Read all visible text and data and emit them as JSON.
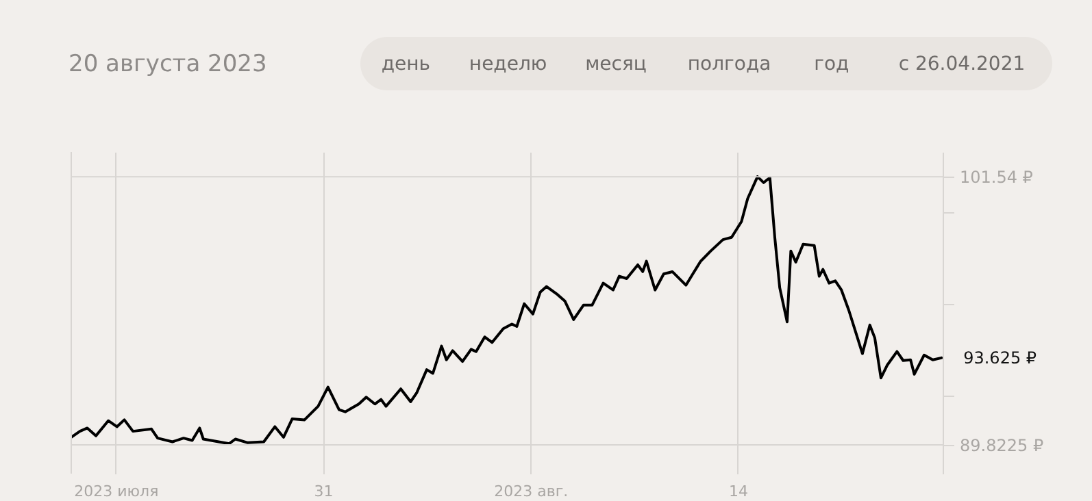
{
  "chart_data": {
    "type": "line",
    "title": "20 августа 2023",
    "annotations": [
      "день",
      "неделю",
      "месяц",
      "полгода",
      "год",
      "с 26.04.2021",
      {
        "text": "93.625 ₽",
        "x": "2023-08-20T21:00",
        "y": 93.625
      }
    ],
    "xlim": [
      "2023-07-22T12:00",
      "2023-08-20T22:00"
    ],
    "xticks": [
      {
        "value": "2023-07-24",
        "label": "2023 июля"
      },
      {
        "value": "2023-07-31",
        "label": "31"
      },
      {
        "value": "2023-08-07",
        "label": "2023 авг."
      },
      {
        "value": "2023-08-14",
        "label": "14"
      }
    ],
    "ylim": [
      88.57,
      102.62
    ],
    "yticks": [
      {
        "value": 89.8225,
        "label": "89.8225 ₽"
      },
      {
        "value": 92,
        "label": null
      },
      {
        "value": 96,
        "label": null
      },
      {
        "value": 100,
        "label": null
      },
      {
        "value": 101.54,
        "label": "101.54 ₽"
      }
    ],
    "grid": true,
    "marker": "none",
    "line_style": "solid",
    "x": [
      "2023-07-22T12:00",
      "2023-07-22T19:00",
      "2023-07-23T01:00",
      "2023-07-23T08:00",
      "2023-07-23T18:00",
      "2023-07-24T01:00",
      "2023-07-24T07:00",
      "2023-07-24T14:00",
      "2023-07-25T05:00",
      "2023-07-25T10:00",
      "2023-07-25T22:00",
      "2023-07-26T07:00",
      "2023-07-26T14:00",
      "2023-07-26T20:00",
      "2023-07-26T23:00",
      "2023-07-27T20:00",
      "2023-07-28T01:00",
      "2023-07-28T11:00",
      "2023-07-29T00:00",
      "2023-07-29T09:00",
      "2023-07-29T16:00",
      "2023-07-29T23:00",
      "2023-07-30T09:00",
      "2023-07-30T20:00",
      "2023-07-31T04:00",
      "2023-07-31T13:00",
      "2023-07-31T18:00",
      "2023-08-01T05:00",
      "2023-08-01T11:00",
      "2023-08-01T18:00",
      "2023-08-01T23:00",
      "2023-08-02T03:00",
      "2023-08-02T15:00",
      "2023-08-02T23:00",
      "2023-08-03T04:00",
      "2023-08-03T12:00",
      "2023-08-03T17:00",
      "2023-08-04T00:00",
      "2023-08-04T04:00",
      "2023-08-04T09:00",
      "2023-08-04T17:00",
      "2023-08-05T00:00",
      "2023-08-05T04:00",
      "2023-08-05T11:00",
      "2023-08-05T17:00",
      "2023-08-06T02:00",
      "2023-08-06T09:00",
      "2023-08-06T13:00",
      "2023-08-06T19:00",
      "2023-08-07T02:00",
      "2023-08-07T08:00",
      "2023-08-07T13:00",
      "2023-08-07T22:00",
      "2023-08-08T04:00",
      "2023-08-08T11:00",
      "2023-08-08T19:00",
      "2023-08-09T02:00",
      "2023-08-09T11:00",
      "2023-08-09T19:00",
      "2023-08-10T00:00",
      "2023-08-10T06:00",
      "2023-08-10T15:00",
      "2023-08-10T19:00",
      "2023-08-10T22:00",
      "2023-08-11T05:00",
      "2023-08-11T12:00",
      "2023-08-11T19:00",
      "2023-08-12T06:00",
      "2023-08-12T12:00",
      "2023-08-12T18:00",
      "2023-08-13T02:00",
      "2023-08-13T12:00",
      "2023-08-13T19:00",
      "2023-08-14T03:00",
      "2023-08-14T08:00",
      "2023-08-14T16:00",
      "2023-08-14T21:00",
      "2023-08-15T02:00",
      "2023-08-15T06:00",
      "2023-08-15T10:00",
      "2023-08-15T16:00",
      "2023-08-15T19:00",
      "2023-08-15T23:00",
      "2023-08-16T05:00",
      "2023-08-16T14:00",
      "2023-08-16T18:00",
      "2023-08-16T21:00",
      "2023-08-17T02:00",
      "2023-08-17T07:00",
      "2023-08-17T12:00",
      "2023-08-17T18:00",
      "2023-08-18T01:00",
      "2023-08-18T05:00",
      "2023-08-18T11:00",
      "2023-08-18T15:00",
      "2023-08-18T20:00",
      "2023-08-19T01:00",
      "2023-08-19T09:00",
      "2023-08-19T14:00",
      "2023-08-19T20:00",
      "2023-08-19T23:00",
      "2023-08-20T07:00",
      "2023-08-20T14:00",
      "2023-08-20T21:00"
    ],
    "series": [
      {
        "color": "#000000",
        "values": [
          90.16,
          90.42,
          90.56,
          90.22,
          90.88,
          90.62,
          90.92,
          90.42,
          90.52,
          90.12,
          89.96,
          90.12,
          90.02,
          90.56,
          90.08,
          89.88,
          90.08,
          89.92,
          89.96,
          90.62,
          90.16,
          90.96,
          90.92,
          91.51,
          92.35,
          91.36,
          91.27,
          91.61,
          91.91,
          91.61,
          91.81,
          91.51,
          92.27,
          91.71,
          92.11,
          93.11,
          92.95,
          94.14,
          93.54,
          93.94,
          93.47,
          94.0,
          93.9,
          94.54,
          94.3,
          94.9,
          95.1,
          95.0,
          95.99,
          95.54,
          96.5,
          96.74,
          96.39,
          96.1,
          95.3,
          95.93,
          95.93,
          96.89,
          96.59,
          97.19,
          97.09,
          97.69,
          97.39,
          97.85,
          96.59,
          97.29,
          97.39,
          96.8,
          97.33,
          97.85,
          98.29,
          98.79,
          98.89,
          99.58,
          100.58,
          101.54,
          101.28,
          101.5,
          98.89,
          96.69,
          95.2,
          98.29,
          97.81,
          98.59,
          98.53,
          97.19,
          97.49,
          96.89,
          96.99,
          96.59,
          95.7,
          94.5,
          93.81,
          95.06,
          94.5,
          92.75,
          93.3,
          93.9,
          93.51,
          93.54,
          92.91,
          93.75,
          93.54,
          93.625
        ]
      }
    ]
  }
}
